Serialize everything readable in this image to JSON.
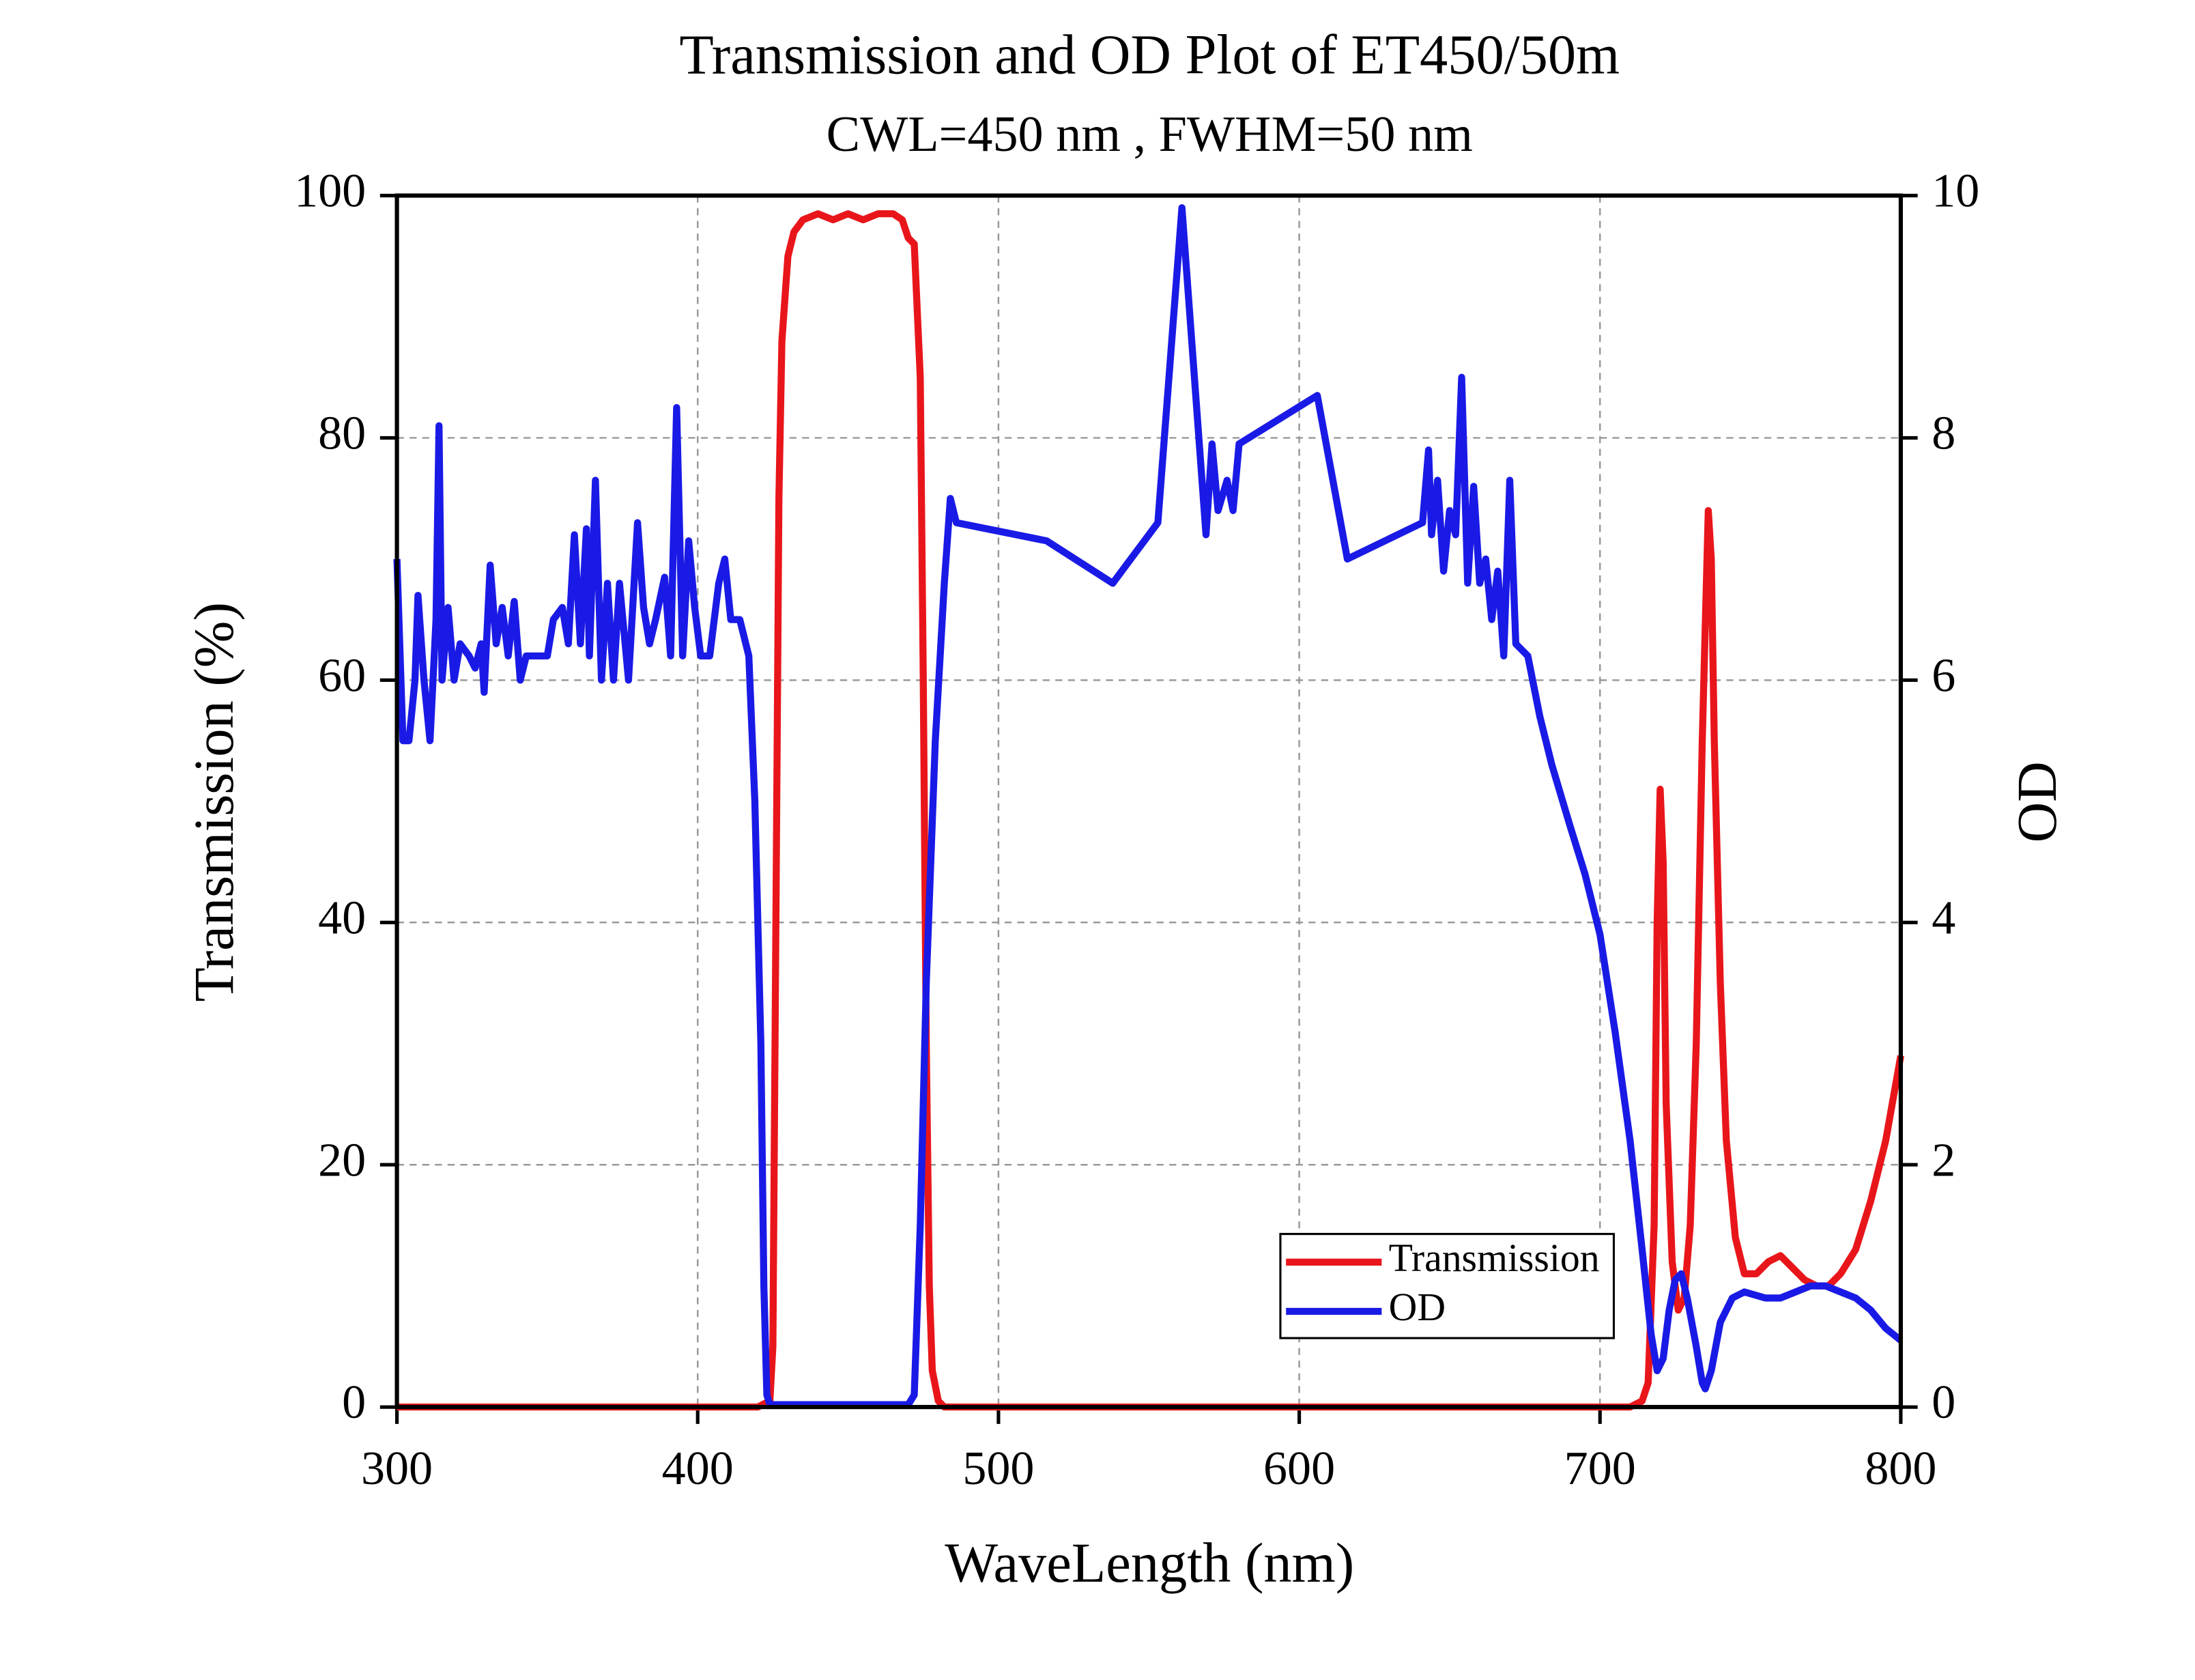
{
  "chart_data": {
    "type": "line",
    "title": "Transmission and OD Plot of ET450/50m",
    "subtitle": "CWL=450 nm , FWHM=50 nm",
    "xlabel": "WaveLength (nm)",
    "ylabel": "Transmission (%)",
    "y2label": "OD",
    "xlim": [
      300,
      800
    ],
    "xticks": [
      300,
      400,
      500,
      600,
      700,
      800
    ],
    "ylim": [
      0,
      100
    ],
    "yticks": [
      0,
      20,
      40,
      60,
      80,
      100
    ],
    "y2lim": [
      0,
      10
    ],
    "y2ticks": [
      0,
      2,
      4,
      6,
      8,
      10
    ],
    "grid": true,
    "legend": "lower right",
    "series": [
      {
        "name": "Transmission",
        "color": "#e8161b",
        "axis": "y",
        "x": [
          300,
          420,
          424,
          425,
          426,
          427,
          428,
          430,
          432,
          435,
          440,
          445,
          450,
          455,
          460,
          465,
          468,
          470,
          472,
          474,
          475,
          476,
          477,
          478,
          480,
          482,
          700,
          710,
          714,
          716,
          718,
          719,
          720,
          721,
          722,
          724,
          726,
          728,
          730,
          732,
          734,
          736,
          737,
          738,
          740,
          742,
          745,
          748,
          752,
          756,
          760,
          764,
          768,
          772,
          776,
          780,
          785,
          790,
          795,
          800
        ],
        "values": [
          0,
          0,
          0.5,
          5,
          40,
          75,
          88,
          95,
          97,
          98,
          98.5,
          98,
          98.5,
          98,
          98.5,
          98.5,
          98,
          96.5,
          96,
          85,
          60,
          30,
          10,
          3,
          0.5,
          0,
          0,
          0,
          0.5,
          2,
          15,
          40,
          51,
          45,
          25,
          12,
          8,
          9,
          15,
          30,
          55,
          74,
          70,
          55,
          35,
          22,
          14,
          11,
          11,
          12,
          12.5,
          11.5,
          10.5,
          10,
          10,
          11,
          13,
          17,
          22,
          29
        ]
      },
      {
        "name": "OD",
        "color": "#1a1ae6",
        "axis": "y2",
        "x": [
          300,
          302,
          304,
          306,
          307,
          309,
          311,
          313,
          314,
          315,
          317,
          319,
          321,
          324,
          326,
          328,
          329,
          331,
          333,
          335,
          337,
          339,
          341,
          343,
          346,
          350,
          352,
          355,
          357,
          359,
          361,
          363,
          364,
          366,
          368,
          370,
          372,
          374,
          377,
          380,
          382,
          384,
          386,
          389,
          391,
          393,
          395,
          397,
          399,
          401,
          404,
          407,
          409,
          411,
          414,
          417,
          419,
          421,
          422,
          423,
          424,
          470,
          472,
          474,
          476,
          479,
          482,
          484,
          486,
          516,
          538,
          553,
          561,
          569,
          571,
          573,
          576,
          578,
          580,
          606,
          616,
          641,
          643,
          644,
          646,
          648,
          650,
          652,
          654,
          656,
          658,
          660,
          662,
          664,
          666,
          668,
          670,
          672,
          676,
          680,
          684,
          690,
          695,
          700,
          705,
          710,
          714,
          717,
          719,
          721,
          723,
          725,
          727,
          729,
          732,
          734,
          735,
          737,
          740,
          744,
          748,
          755,
          760,
          765,
          770,
          775,
          780,
          785,
          790,
          795,
          800
        ],
        "values": [
          7.0,
          5.5,
          5.5,
          6.0,
          6.7,
          6.0,
          5.5,
          6.5,
          8.1,
          6.0,
          6.6,
          6.0,
          6.3,
          6.2,
          6.1,
          6.3,
          5.9,
          6.95,
          6.3,
          6.6,
          6.2,
          6.65,
          6.0,
          6.2,
          6.2,
          6.2,
          6.5,
          6.6,
          6.3,
          7.2,
          6.3,
          7.25,
          6.2,
          7.65,
          6.0,
          6.8,
          6.0,
          6.8,
          6.0,
          7.3,
          6.6,
          6.3,
          6.5,
          6.85,
          6.2,
          8.25,
          6.2,
          7.15,
          6.6,
          6.2,
          6.2,
          6.8,
          7.0,
          6.5,
          6.5,
          6.2,
          5.0,
          3.0,
          1.0,
          0.1,
          0.02,
          0.02,
          0.1,
          1.5,
          3.5,
          5.5,
          6.8,
          7.5,
          7.3,
          7.15,
          6.8,
          7.3,
          9.9,
          7.2,
          7.95,
          7.4,
          7.65,
          7.4,
          7.95,
          8.35,
          7.0,
          7.3,
          7.9,
          7.2,
          7.65,
          6.9,
          7.4,
          7.2,
          8.5,
          6.8,
          7.6,
          6.8,
          7.0,
          6.5,
          6.9,
          6.2,
          7.65,
          6.3,
          6.2,
          5.7,
          5.3,
          4.8,
          4.4,
          3.9,
          3.1,
          2.2,
          1.3,
          0.6,
          0.3,
          0.4,
          0.8,
          1.05,
          1.1,
          0.9,
          0.5,
          0.2,
          0.15,
          0.3,
          0.7,
          0.9,
          0.95,
          0.9,
          0.9,
          0.95,
          1.0,
          1.0,
          0.95,
          0.9,
          0.8,
          0.65,
          0.55
        ]
      }
    ]
  }
}
